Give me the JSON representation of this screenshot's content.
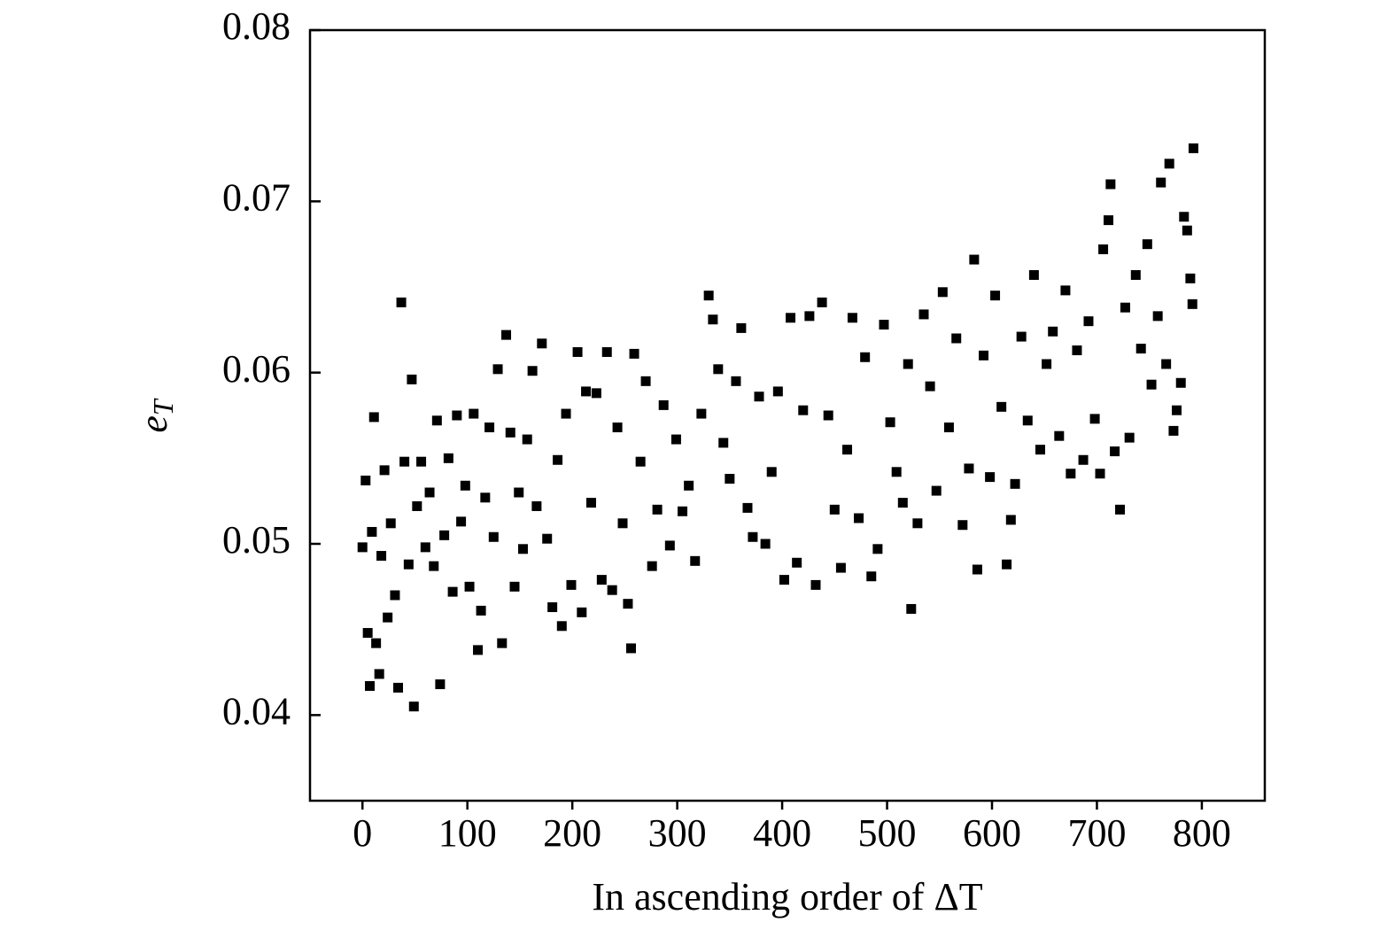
{
  "chart_data": {
    "type": "scatter",
    "xlabel": "In ascending order of ΔT",
    "ylabel": "e",
    "ylabel_sub": "T",
    "color": "#000000",
    "xlim": [
      -50,
      860
    ],
    "ylim": [
      0.035,
      0.08
    ],
    "xticks": [
      0,
      100,
      200,
      300,
      400,
      500,
      600,
      700,
      800
    ],
    "yticks": [
      0.04,
      0.05,
      0.06,
      0.07,
      0.08
    ],
    "x": [
      0,
      3,
      5,
      7,
      9,
      11,
      13,
      16,
      18,
      21,
      24,
      27,
      31,
      34,
      37,
      40,
      44,
      47,
      49,
      52,
      56,
      60,
      64,
      68,
      71,
      74,
      78,
      82,
      86,
      90,
      94,
      98,
      102,
      106,
      110,
      113,
      117,
      121,
      125,
      129,
      133,
      137,
      141,
      145,
      149,
      153,
      157,
      162,
      166,
      171,
      176,
      181,
      186,
      190,
      194,
      199,
      205,
      209,
      213,
      218,
      223,
      228,
      233,
      238,
      243,
      248,
      253,
      256,
      259,
      265,
      270,
      276,
      281,
      287,
      293,
      299,
      305,
      311,
      317,
      323,
      330,
      334,
      339,
      344,
      350,
      356,
      361,
      367,
      372,
      378,
      384,
      390,
      396,
      402,
      408,
      414,
      420,
      426,
      432,
      438,
      444,
      450,
      456,
      462,
      467,
      473,
      479,
      485,
      491,
      497,
      503,
      509,
      515,
      520,
      523,
      529,
      535,
      541,
      547,
      553,
      559,
      566,
      572,
      578,
      583,
      586,
      592,
      598,
      603,
      609,
      614,
      618,
      622,
      628,
      634,
      640,
      646,
      652,
      658,
      664,
      670,
      675,
      681,
      687,
      692,
      698,
      703,
      706,
      711,
      713,
      717,
      722,
      727,
      731,
      737,
      742,
      748,
      752,
      758,
      761,
      766,
      769,
      773,
      776,
      780,
      783,
      786,
      789,
      791,
      792
    ],
    "y": [
      0.0498,
      0.0537,
      0.0448,
      0.0417,
      0.0507,
      0.0574,
      0.0442,
      0.0424,
      0.0493,
      0.0543,
      0.0457,
      0.0512,
      0.047,
      0.0416,
      0.0641,
      0.0548,
      0.0488,
      0.0596,
      0.0405,
      0.0522,
      0.0548,
      0.0498,
      0.053,
      0.0487,
      0.0572,
      0.0418,
      0.0505,
      0.055,
      0.0472,
      0.0575,
      0.0513,
      0.0534,
      0.0475,
      0.0576,
      0.0438,
      0.0461,
      0.0527,
      0.0568,
      0.0504,
      0.0602,
      0.0442,
      0.0622,
      0.0565,
      0.0475,
      0.053,
      0.0497,
      0.0561,
      0.0601,
      0.0522,
      0.0617,
      0.0503,
      0.0463,
      0.0549,
      0.0452,
      0.0576,
      0.0476,
      0.0612,
      0.046,
      0.0589,
      0.0524,
      0.0588,
      0.0479,
      0.0612,
      0.0473,
      0.0568,
      0.0512,
      0.0465,
      0.0439,
      0.0611,
      0.0548,
      0.0595,
      0.0487,
      0.052,
      0.0581,
      0.0499,
      0.0561,
      0.0519,
      0.0534,
      0.049,
      0.0576,
      0.0645,
      0.0631,
      0.0602,
      0.0559,
      0.0538,
      0.0595,
      0.0626,
      0.0521,
      0.0504,
      0.0586,
      0.05,
      0.0542,
      0.0589,
      0.0479,
      0.0632,
      0.0489,
      0.0578,
      0.0633,
      0.0476,
      0.0641,
      0.0575,
      0.052,
      0.0486,
      0.0555,
      0.0632,
      0.0515,
      0.0609,
      0.0481,
      0.0497,
      0.0628,
      0.0571,
      0.0542,
      0.0524,
      0.0605,
      0.0462,
      0.0512,
      0.0634,
      0.0592,
      0.0531,
      0.0647,
      0.0568,
      0.062,
      0.0511,
      0.0544,
      0.0666,
      0.0485,
      0.061,
      0.0539,
      0.0645,
      0.058,
      0.0488,
      0.0514,
      0.0535,
      0.0621,
      0.0572,
      0.0657,
      0.0555,
      0.0605,
      0.0624,
      0.0563,
      0.0648,
      0.0541,
      0.0613,
      0.0549,
      0.063,
      0.0573,
      0.0541,
      0.0672,
      0.0689,
      0.071,
      0.0554,
      0.052,
      0.0638,
      0.0562,
      0.0657,
      0.0614,
      0.0675,
      0.0593,
      0.0633,
      0.0711,
      0.0605,
      0.0722,
      0.0566,
      0.0578,
      0.0594,
      0.0691,
      0.0683,
      0.0655,
      0.064,
      0.0731
    ]
  }
}
